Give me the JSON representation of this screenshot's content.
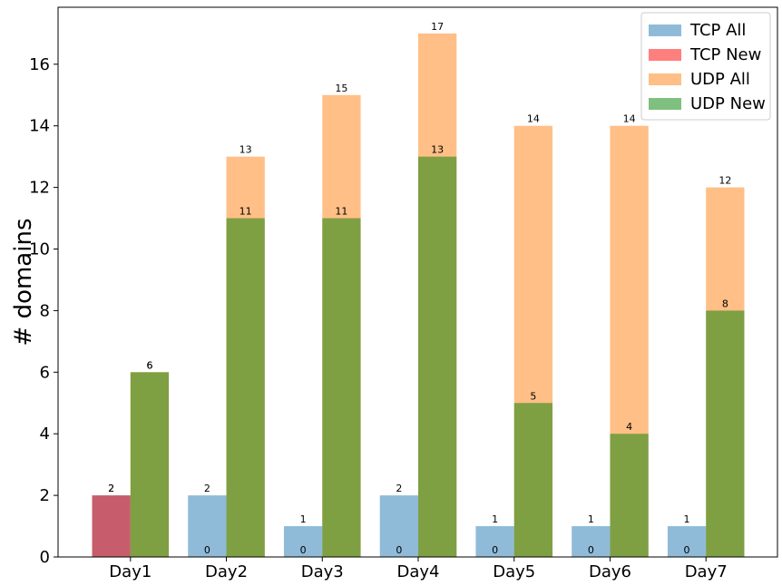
{
  "chart_data": {
    "type": "bar",
    "categories": [
      "Day1",
      "Day2",
      "Day3",
      "Day4",
      "Day5",
      "Day6",
      "Day7"
    ],
    "series": [
      {
        "name": "TCP All",
        "values": [
          2,
          2,
          1,
          2,
          1,
          1,
          1
        ],
        "color": "#1f77b4",
        "alpha": 0.5,
        "group": "tcp"
      },
      {
        "name": "TCP New",
        "values": [
          2,
          0,
          0,
          0,
          0,
          0,
          0
        ],
        "color": "#ff0000",
        "alpha": 0.5,
        "group": "tcp"
      },
      {
        "name": "UDP All",
        "values": [
          6,
          13,
          15,
          17,
          14,
          14,
          12
        ],
        "color": "#ff7f0e",
        "alpha": 0.5,
        "group": "udp"
      },
      {
        "name": "UDP New",
        "values": [
          6,
          11,
          11,
          13,
          5,
          4,
          8
        ],
        "color": "#008000",
        "alpha": 0.5,
        "group": "udp"
      }
    ],
    "title": "",
    "xlabel": "",
    "ylabel": "# domains",
    "ylim": [
      0,
      17.85
    ],
    "yticks": [
      0,
      2,
      4,
      6,
      8,
      10,
      12,
      14,
      16
    ],
    "grid": false,
    "legend": "top-right",
    "bar_labels": true
  }
}
